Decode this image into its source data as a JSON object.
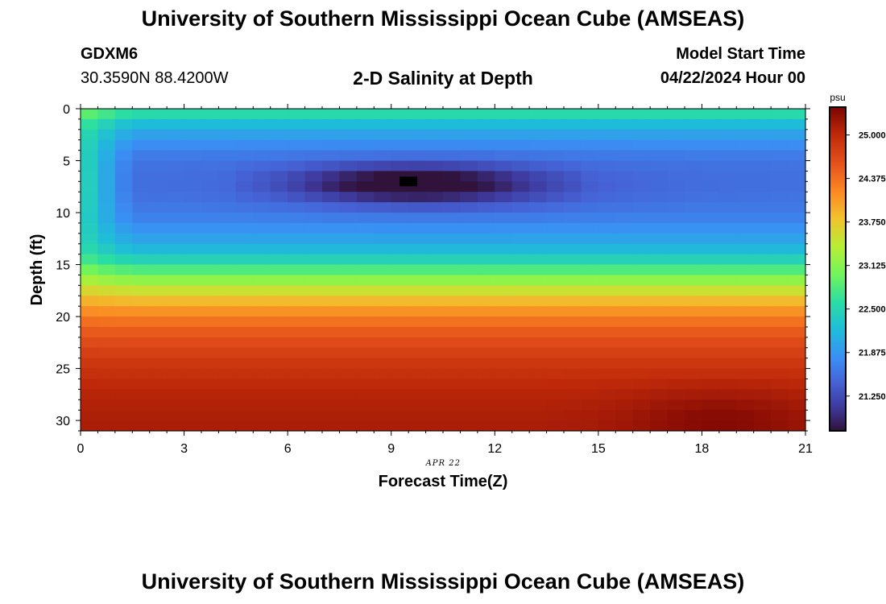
{
  "header": {
    "title": "University of Southern Mississippi Ocean Cube (AMSEAS)",
    "station_id": "GDXM6",
    "coordinates": "30.3590N  88.4200W",
    "subtitle": "2-D Salinity at Depth",
    "start_label": "Model Start Time",
    "start_value": "04/22/2024 Hour 00"
  },
  "footer": {
    "title": "University of Southern Mississippi Ocean Cube (AMSEAS)"
  },
  "chart_data": {
    "type": "heatmap",
    "title": "2-D Salinity at Depth",
    "xlabel": "Forecast Time(Z)",
    "ylabel": "Depth (ft)",
    "x_ticks": [
      0,
      3,
      6,
      9,
      12,
      15,
      18,
      21
    ],
    "y_ticks": [
      0,
      5,
      10,
      15,
      20,
      25,
      30
    ],
    "x_range": [
      0,
      21
    ],
    "y_range": [
      0,
      31
    ],
    "date_label": "APR 22",
    "colorbar": {
      "unit": "psu",
      "range": [
        20.75,
        25.4
      ],
      "ticks": [
        "25.000",
        "24.375",
        "23.750",
        "23.125",
        "22.500",
        "21.875",
        "21.250"
      ]
    },
    "color_stops": [
      {
        "v": 20.75,
        "c": "#30123b"
      },
      {
        "v": 21.1,
        "c": "#3e3a9e"
      },
      {
        "v": 21.45,
        "c": "#4563d6"
      },
      {
        "v": 21.8,
        "c": "#3a8ff5"
      },
      {
        "v": 22.2,
        "c": "#1fbcd9"
      },
      {
        "v": 22.6,
        "c": "#2adda4"
      },
      {
        "v": 23.0,
        "c": "#72f55a"
      },
      {
        "v": 23.4,
        "c": "#b8ee33"
      },
      {
        "v": 23.8,
        "c": "#f2c12f"
      },
      {
        "v": 24.2,
        "c": "#fb8722"
      },
      {
        "v": 24.6,
        "c": "#e4501b"
      },
      {
        "v": 25.0,
        "c": "#c02a0a"
      },
      {
        "v": 25.4,
        "c": "#7a0403"
      }
    ],
    "depth_profile": [
      {
        "depth": 0,
        "value": 22.75
      },
      {
        "depth": 1,
        "value": 22.35
      },
      {
        "depth": 2,
        "value": 22.05
      },
      {
        "depth": 3,
        "value": 21.85
      },
      {
        "depth": 4,
        "value": 21.7
      },
      {
        "depth": 5,
        "value": 21.6
      },
      {
        "depth": 6,
        "value": 21.55
      },
      {
        "depth": 7,
        "value": 21.55
      },
      {
        "depth": 8,
        "value": 21.55
      },
      {
        "depth": 9,
        "value": 21.6
      },
      {
        "depth": 10,
        "value": 21.65
      },
      {
        "depth": 11,
        "value": 21.75
      },
      {
        "depth": 12,
        "value": 21.9
      },
      {
        "depth": 13,
        "value": 22.05
      },
      {
        "depth": 14,
        "value": 22.3
      },
      {
        "depth": 15,
        "value": 22.6
      },
      {
        "depth": 16,
        "value": 23.0
      },
      {
        "depth": 17,
        "value": 23.35
      },
      {
        "depth": 18,
        "value": 23.7
      },
      {
        "depth": 19,
        "value": 24.0
      },
      {
        "depth": 20,
        "value": 24.25
      },
      {
        "depth": 21,
        "value": 24.45
      },
      {
        "depth": 22,
        "value": 24.6
      },
      {
        "depth": 23,
        "value": 24.72
      },
      {
        "depth": 24,
        "value": 24.82
      },
      {
        "depth": 25,
        "value": 24.9
      },
      {
        "depth": 26,
        "value": 24.98
      },
      {
        "depth": 27,
        "value": 25.03
      },
      {
        "depth": 28,
        "value": 25.07
      },
      {
        "depth": 29,
        "value": 25.1
      },
      {
        "depth": 30,
        "value": 25.12
      },
      {
        "depth": 31,
        "value": 25.13
      }
    ],
    "features": [
      {
        "name": "low-salinity-core",
        "time_min": 7.5,
        "time_max": 11.5,
        "time_center": 9.5,
        "depth_center": 7.2,
        "anomaly": -0.7,
        "time_sigma": 3.2,
        "depth_sigma": 1.7
      },
      {
        "name": "mid-layer-tongue",
        "time_min": 4.5,
        "time_max": 15.5,
        "time_center": 10.5,
        "depth_center": 7.5,
        "anomaly": -0.35,
        "time_sigma": 4.5,
        "depth_sigma": 2.2
      },
      {
        "name": "high-salinity-bottom",
        "time_min": 16.0,
        "time_max": 21.0,
        "time_center": 18.5,
        "depth_center": 30.0,
        "anomaly": 0.22,
        "time_sigma": 2.6,
        "depth_sigma": 3.0
      },
      {
        "name": "surface-fresh-edge",
        "time_min": 0.0,
        "time_max": 0.6,
        "time_center": 0.0,
        "depth_center": 8.0,
        "anomaly": 0.55,
        "time_sigma": 0.9,
        "depth_sigma": 7.0
      }
    ],
    "minimum_marker": {
      "time": 9.5,
      "depth": 7.0
    }
  }
}
